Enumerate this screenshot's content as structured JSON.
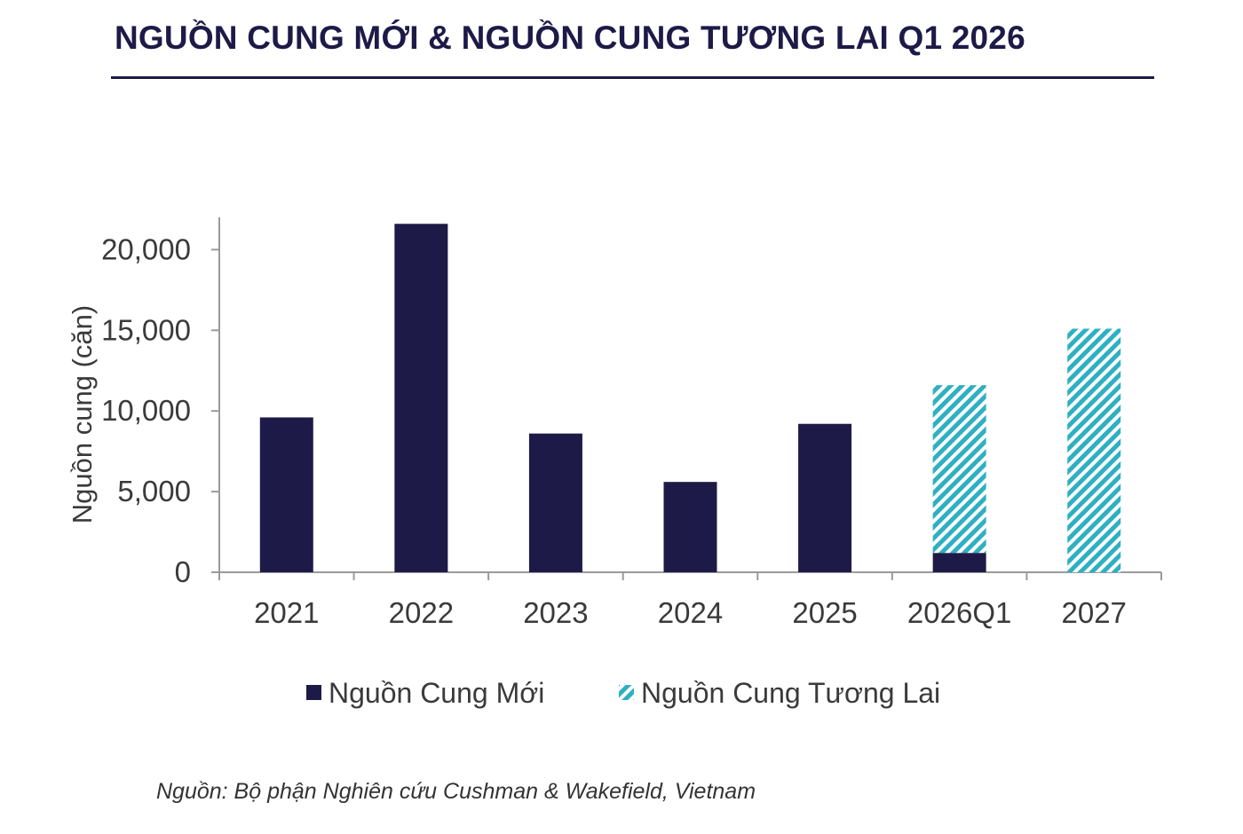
{
  "title": "NGUỒN CUNG MỚI & NGUỒN CUNG TƯƠNG LAI Q1 2026",
  "source": "Nguồn: Bộ phận Nghiên cứu Cushman & Wakefield, Vietnam",
  "colors": {
    "title": "#1e1a47",
    "new_supply": "#1e1a47",
    "future_supply": "#2fb0c2",
    "axis": "#9a9a9a",
    "text": "#3a3a3a"
  },
  "chart_data": {
    "type": "bar",
    "stacked": true,
    "categories": [
      "2021",
      "2022",
      "2023",
      "2024",
      "2025",
      "2026Q1",
      "2027"
    ],
    "series": [
      {
        "name": "Nguồn Cung Mới",
        "color": "#1e1a47",
        "pattern": "solid",
        "values": [
          9600,
          21600,
          8600,
          5600,
          9200,
          1200,
          0
        ]
      },
      {
        "name": "Nguồn Cung Tương Lai",
        "color": "#2fb0c2",
        "pattern": "diagonal-hatch",
        "values": [
          0,
          0,
          0,
          0,
          0,
          10400,
          15100
        ]
      }
    ],
    "ylabel": "Nguồn cung (căn)",
    "xlabel": "",
    "ylim": [
      0,
      22000
    ],
    "yticks": [
      0,
      5000,
      10000,
      15000,
      20000
    ],
    "ytick_labels": [
      "0",
      "5,000",
      "10,000",
      "15,000",
      "20,000"
    ],
    "grid": false,
    "legend_position": "bottom-center"
  }
}
